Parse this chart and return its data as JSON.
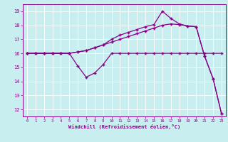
{
  "xlabel": "Windchill (Refroidissement éolien,°C)",
  "background_color": "#c8eef0",
  "line_color": "#880088",
  "ylim": [
    11.5,
    19.5
  ],
  "xlim": [
    -0.5,
    23.5
  ],
  "yticks": [
    12,
    13,
    14,
    15,
    16,
    17,
    18,
    19
  ],
  "xticks": [
    0,
    1,
    2,
    3,
    4,
    5,
    6,
    7,
    8,
    9,
    10,
    11,
    12,
    13,
    14,
    15,
    16,
    17,
    18,
    19,
    20,
    21,
    22,
    23
  ],
  "xtick_labels": [
    "0",
    "1",
    "2",
    "3",
    "4",
    "5",
    "6",
    "7",
    "8",
    "9",
    "10",
    "11",
    "12",
    "13",
    "14",
    "15",
    "16",
    "17",
    "18",
    "19",
    "20",
    "21",
    "22",
    "23"
  ],
  "series": [
    {
      "x": [
        0,
        1,
        2,
        3,
        4,
        5,
        6,
        7,
        8,
        9,
        10,
        11,
        12,
        13,
        14,
        15,
        16,
        17,
        18,
        19,
        20,
        21,
        22,
        23
      ],
      "y": [
        16,
        16,
        16,
        16,
        16,
        16,
        15.1,
        14.3,
        14.6,
        15.2,
        16.0,
        16.0,
        16.0,
        16.0,
        16.0,
        16.0,
        16.0,
        16.0,
        16.0,
        16.0,
        16.0,
        16.0,
        16.0,
        16.0
      ]
    },
    {
      "x": [
        0,
        1,
        2,
        3,
        4,
        5,
        6,
        7,
        8,
        9,
        10,
        11,
        12,
        13,
        14,
        15,
        16,
        17,
        18,
        19,
        20,
        21,
        22,
        23
      ],
      "y": [
        16,
        16,
        16,
        16,
        16,
        16,
        16.1,
        16.2,
        16.4,
        16.6,
        16.8,
        17.0,
        17.2,
        17.4,
        17.6,
        17.8,
        18.0,
        18.1,
        18.05,
        17.95,
        17.9,
        15.8,
        14.2,
        11.7
      ]
    },
    {
      "x": [
        0,
        1,
        2,
        3,
        4,
        5,
        6,
        7,
        8,
        9,
        10,
        11,
        12,
        13,
        14,
        15,
        16,
        17,
        18,
        19,
        20,
        21,
        22,
        23
      ],
      "y": [
        16,
        16,
        16,
        16,
        16,
        16,
        16.1,
        16.2,
        16.4,
        16.6,
        17.0,
        17.3,
        17.5,
        17.7,
        17.9,
        18.05,
        19.0,
        18.5,
        18.1,
        17.95,
        17.9,
        15.8,
        14.2,
        11.7
      ]
    }
  ]
}
